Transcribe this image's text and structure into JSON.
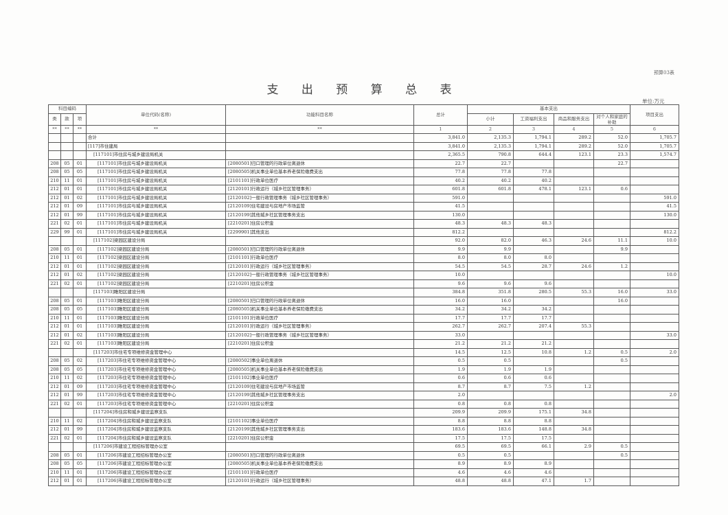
{
  "form_number": "预算03表",
  "title": "支 出 预 算 总 表",
  "unit_label": "单位:万元",
  "headers": {
    "subject_code": "科目编码",
    "lei": "类",
    "kuan": "款",
    "xiang": "项",
    "unit_name": "单位代码(名称)",
    "function_name": "功能科目名称",
    "total": "总计",
    "basic": "基本支出",
    "subtotal": "小计",
    "wages": "工资福利支出",
    "goods": "商品和服务支出",
    "personal": "对个人和家庭的补助",
    "project": "项目支出",
    "star": "**",
    "col_numbers": [
      "1",
      "2",
      "3",
      "4",
      "5",
      "6"
    ]
  },
  "rows": [
    {
      "level": 0,
      "lei": "",
      "kuan": "",
      "xiang": "",
      "unit": "合计",
      "func": "",
      "v": [
        "3,841.0",
        "2,135.3",
        "1,794.1",
        "289.2",
        "52.0",
        "1,705.7"
      ]
    },
    {
      "level": 0,
      "lei": "",
      "kuan": "",
      "xiang": "",
      "unit": "[117]市住建局",
      "func": "",
      "v": [
        "3,841.0",
        "2,135.3",
        "1,794.1",
        "289.2",
        "52.0",
        "1,705.7"
      ]
    },
    {
      "level": 1,
      "lei": "",
      "kuan": "",
      "xiang": "",
      "unit": "[117101]市住房与城乡建设局机关",
      "func": "",
      "v": [
        "2,365.5",
        "790.8",
        "644.4",
        "123.1",
        "23.3",
        "1,574.7"
      ]
    },
    {
      "level": 2,
      "lei": "208",
      "kuan": "05",
      "xiang": "01",
      "unit": "[117101]市住房与城乡建设局机关",
      "func": "[2080501]归口管理的行政单位离退休",
      "v": [
        "22.7",
        "22.7",
        "",
        "",
        "22.7",
        ""
      ]
    },
    {
      "level": 2,
      "lei": "208",
      "kuan": "05",
      "xiang": "05",
      "unit": "[117101]市住房与城乡建设局机关",
      "func": "[2080505]机关事业单位基本养老保险缴费支出",
      "v": [
        "77.8",
        "77.8",
        "77.8",
        "",
        "",
        ""
      ]
    },
    {
      "level": 2,
      "lei": "210",
      "kuan": "11",
      "xiang": "01",
      "unit": "[117101]市住房与城乡建设局机关",
      "func": "[2101101]行政单位医疗",
      "v": [
        "40.2",
        "40.2",
        "40.2",
        "",
        "",
        ""
      ]
    },
    {
      "level": 2,
      "lei": "212",
      "kuan": "01",
      "xiang": "01",
      "unit": "[117101]市住房与城乡建设局机关",
      "func": "[2120101]行政运行（城乡社区管理事务）",
      "v": [
        "601.8",
        "601.8",
        "478.1",
        "123.1",
        "0.6",
        ""
      ]
    },
    {
      "level": 2,
      "lei": "212",
      "kuan": "01",
      "xiang": "02",
      "unit": "[117101]市住房与城乡建设局机关",
      "func": "[2120102]一般行政管理事务（城乡社区管理事务）",
      "v": [
        "591.0",
        "",
        "",
        "",
        "",
        "591.0"
      ]
    },
    {
      "level": 2,
      "lei": "212",
      "kuan": "01",
      "xiang": "09",
      "unit": "[117101]市住房与城乡建设局机关",
      "func": "[2120109]住宅建设与房地产市场监管",
      "v": [
        "41.5",
        "",
        "",
        "",
        "",
        "41.5"
      ]
    },
    {
      "level": 2,
      "lei": "212",
      "kuan": "01",
      "xiang": "99",
      "unit": "[117101]市住房与城乡建设局机关",
      "func": "[2120199]其他城乡社区管理事务支出",
      "v": [
        "130.0",
        "",
        "",
        "",
        "",
        "130.0"
      ]
    },
    {
      "level": 2,
      "lei": "221",
      "kuan": "02",
      "xiang": "01",
      "unit": "[117101]市住房与城乡建设局机关",
      "func": "[2210201]住房公积金",
      "v": [
        "48.3",
        "48.3",
        "48.3",
        "",
        "",
        ""
      ]
    },
    {
      "level": 2,
      "lei": "229",
      "kuan": "99",
      "xiang": "01",
      "unit": "[117101]市住房与城乡建设局机关",
      "func": "[2299901]其他支出",
      "v": [
        "812.2",
        "",
        "",
        "",
        "",
        "812.2"
      ]
    },
    {
      "level": 1,
      "lei": "",
      "kuan": "",
      "xiang": "",
      "unit": "[117102]梁园区建设分局",
      "func": "",
      "v": [
        "92.0",
        "82.0",
        "46.3",
        "24.6",
        "11.1",
        "10.0"
      ]
    },
    {
      "level": 2,
      "lei": "208",
      "kuan": "05",
      "xiang": "01",
      "unit": "[117102]梁园区建设分局",
      "func": "[2080501]归口管理的行政单位离退休",
      "v": [
        "9.9",
        "9.9",
        "",
        "",
        "9.9",
        ""
      ]
    },
    {
      "level": 2,
      "lei": "210",
      "kuan": "11",
      "xiang": "01",
      "unit": "[117102]梁园区建设分局",
      "func": "[2101101]行政单位医疗",
      "v": [
        "8.0",
        "8.0",
        "8.0",
        "",
        "",
        ""
      ]
    },
    {
      "level": 2,
      "lei": "212",
      "kuan": "01",
      "xiang": "01",
      "unit": "[117102]梁园区建设分局",
      "func": "[2120101]行政运行（城乡社区管理事务）",
      "v": [
        "54.5",
        "54.5",
        "28.7",
        "24.6",
        "1.2",
        ""
      ]
    },
    {
      "level": 2,
      "lei": "212",
      "kuan": "01",
      "xiang": "02",
      "unit": "[117102]梁园区建设分局",
      "func": "[2120102]一般行政管理事务（城乡社区管理事务）",
      "v": [
        "10.0",
        "",
        "",
        "",
        "",
        "10.0"
      ]
    },
    {
      "level": 2,
      "lei": "221",
      "kuan": "02",
      "xiang": "01",
      "unit": "[117102]梁园区建设分局",
      "func": "[2210201]住房公积金",
      "v": [
        "9.6",
        "9.6",
        "9.6",
        "",
        "",
        ""
      ]
    },
    {
      "level": 1,
      "lei": "",
      "kuan": "",
      "xiang": "",
      "unit": "[117103]睢阳区建设分局",
      "func": "",
      "v": [
        "384.8",
        "351.8",
        "280.5",
        "55.3",
        "16.0",
        "33.0"
      ]
    },
    {
      "level": 2,
      "lei": "208",
      "kuan": "05",
      "xiang": "01",
      "unit": "[117103]睢阳区建设分局",
      "func": "[2080501]归口管理的行政单位离退休",
      "v": [
        "16.0",
        "16.0",
        "",
        "",
        "16.0",
        ""
      ]
    },
    {
      "level": 2,
      "lei": "208",
      "kuan": "05",
      "xiang": "05",
      "unit": "[117103]睢阳区建设分局",
      "func": "[2080505]机关事业单位基本养老保险缴费支出",
      "v": [
        "34.2",
        "34.2",
        "34.2",
        "",
        "",
        ""
      ]
    },
    {
      "level": 2,
      "lei": "210",
      "kuan": "11",
      "xiang": "01",
      "unit": "[117103]睢阳区建设分局",
      "func": "[2101101]行政单位医疗",
      "v": [
        "17.7",
        "17.7",
        "17.7",
        "",
        "",
        ""
      ]
    },
    {
      "level": 2,
      "lei": "212",
      "kuan": "01",
      "xiang": "01",
      "unit": "[117103]睢阳区建设分局",
      "func": "[2120101]行政运行（城乡社区管理事务）",
      "v": [
        "262.7",
        "262.7",
        "207.4",
        "55.3",
        "",
        ""
      ]
    },
    {
      "level": 2,
      "lei": "212",
      "kuan": "01",
      "xiang": "02",
      "unit": "[117103]睢阳区建设分局",
      "func": "[2120102]一般行政管理事务（城乡社区管理事务）",
      "v": [
        "33.0",
        "",
        "",
        "",
        "",
        "33.0"
      ]
    },
    {
      "level": 2,
      "lei": "221",
      "kuan": "02",
      "xiang": "01",
      "unit": "[117103]睢阳区建设分局",
      "func": "[2210201]住房公积金",
      "v": [
        "21.2",
        "21.2",
        "21.2",
        "",
        "",
        ""
      ]
    },
    {
      "level": 1,
      "lei": "",
      "kuan": "",
      "xiang": "",
      "unit": "[117203]市住宅专项维修资金管理中心",
      "func": "",
      "v": [
        "14.5",
        "12.5",
        "10.8",
        "1.2",
        "0.5",
        "2.0"
      ]
    },
    {
      "level": 2,
      "lei": "208",
      "kuan": "05",
      "xiang": "02",
      "unit": "[117203]市住宅专项维修资金管理中心",
      "func": "[2080502]事业单位离退休",
      "v": [
        "0.5",
        "0.5",
        "",
        "",
        "0.5",
        ""
      ]
    },
    {
      "level": 2,
      "lei": "208",
      "kuan": "05",
      "xiang": "05",
      "unit": "[117203]市住宅专项维修资金管理中心",
      "func": "[2080505]机关事业单位基本养老保险缴费支出",
      "v": [
        "1.9",
        "1.9",
        "1.9",
        "",
        "",
        ""
      ]
    },
    {
      "level": 2,
      "lei": "210",
      "kuan": "11",
      "xiang": "02",
      "unit": "[117203]市住宅专项维修资金管理中心",
      "func": "[2101102]事业单位医疗",
      "v": [
        "0.6",
        "0.6",
        "0.6",
        "",
        "",
        ""
      ]
    },
    {
      "level": 2,
      "lei": "212",
      "kuan": "01",
      "xiang": "09",
      "unit": "[117203]市住宅专项维修资金管理中心",
      "func": "[2120109]住宅建设与房地产市场监管",
      "v": [
        "8.7",
        "8.7",
        "7.5",
        "1.2",
        "",
        ""
      ]
    },
    {
      "level": 2,
      "lei": "212",
      "kuan": "01",
      "xiang": "99",
      "unit": "[117203]市住宅专项维修资金管理中心",
      "func": "[2120199]其他城乡社区管理事务支出",
      "v": [
        "2.0",
        "",
        "",
        "",
        "",
        "2.0"
      ]
    },
    {
      "level": 2,
      "lei": "221",
      "kuan": "02",
      "xiang": "01",
      "unit": "[117203]市住宅专项维修资金管理中心",
      "func": "[2210201]住房公积金",
      "v": [
        "0.8",
        "0.8",
        "0.8",
        "",
        "",
        ""
      ]
    },
    {
      "level": 1,
      "lei": "",
      "kuan": "",
      "xiang": "",
      "unit": "[117204]市住房和城乡建设监察支队",
      "func": "",
      "v": [
        "209.9",
        "209.9",
        "175.1",
        "34.8",
        "",
        ""
      ]
    },
    {
      "level": 2,
      "lei": "210",
      "kuan": "11",
      "xiang": "02",
      "unit": "[117204]市住房和城乡建设监察支队",
      "func": "[2101102]事业单位医疗",
      "v": [
        "8.8",
        "8.8",
        "8.8",
        "",
        "",
        ""
      ]
    },
    {
      "level": 2,
      "lei": "212",
      "kuan": "01",
      "xiang": "99",
      "unit": "[117204]市住房和城乡建设监察支队",
      "func": "[2120199]其他城乡社区管理事务支出",
      "v": [
        "183.6",
        "183.6",
        "148.8",
        "34.8",
        "",
        ""
      ]
    },
    {
      "level": 2,
      "lei": "221",
      "kuan": "02",
      "xiang": "01",
      "unit": "[117204]市住房和城乡建设监察支队",
      "func": "[2210201]住房公积金",
      "v": [
        "17.5",
        "17.5",
        "17.5",
        "",
        "",
        ""
      ]
    },
    {
      "level": 1,
      "lei": "",
      "kuan": "",
      "xiang": "",
      "unit": "[117206]市建设工程招标管理办公室",
      "func": "",
      "v": [
        "69.5",
        "69.5",
        "66.1",
        "2.9",
        "0.5",
        ""
      ]
    },
    {
      "level": 2,
      "lei": "208",
      "kuan": "05",
      "xiang": "01",
      "unit": "[117206]市建设工程招标管理办公室",
      "func": "[2080501]归口管理的行政单位离退休",
      "v": [
        "0.5",
        "0.5",
        "",
        "",
        "0.5",
        ""
      ]
    },
    {
      "level": 2,
      "lei": "208",
      "kuan": "05",
      "xiang": "05",
      "unit": "[117206]市建设工程招标管理办公室",
      "func": "[2080505]机关事业单位基本养老保险缴费支出",
      "v": [
        "8.9",
        "8.9",
        "8.9",
        "",
        "",
        ""
      ]
    },
    {
      "level": 2,
      "lei": "210",
      "kuan": "11",
      "xiang": "01",
      "unit": "[117206]市建设工程招标管理办公室",
      "func": "[2101101]行政单位医疗",
      "v": [
        "4.6",
        "4.6",
        "4.6",
        "",
        "",
        ""
      ]
    },
    {
      "level": 2,
      "lei": "212",
      "kuan": "01",
      "xiang": "01",
      "unit": "[117206]市建设工程招标管理办公室",
      "func": "[2120101]行政运行（城乡社区管理事务）",
      "v": [
        "48.8",
        "48.8",
        "47.1",
        "1.7",
        "",
        ""
      ]
    }
  ]
}
